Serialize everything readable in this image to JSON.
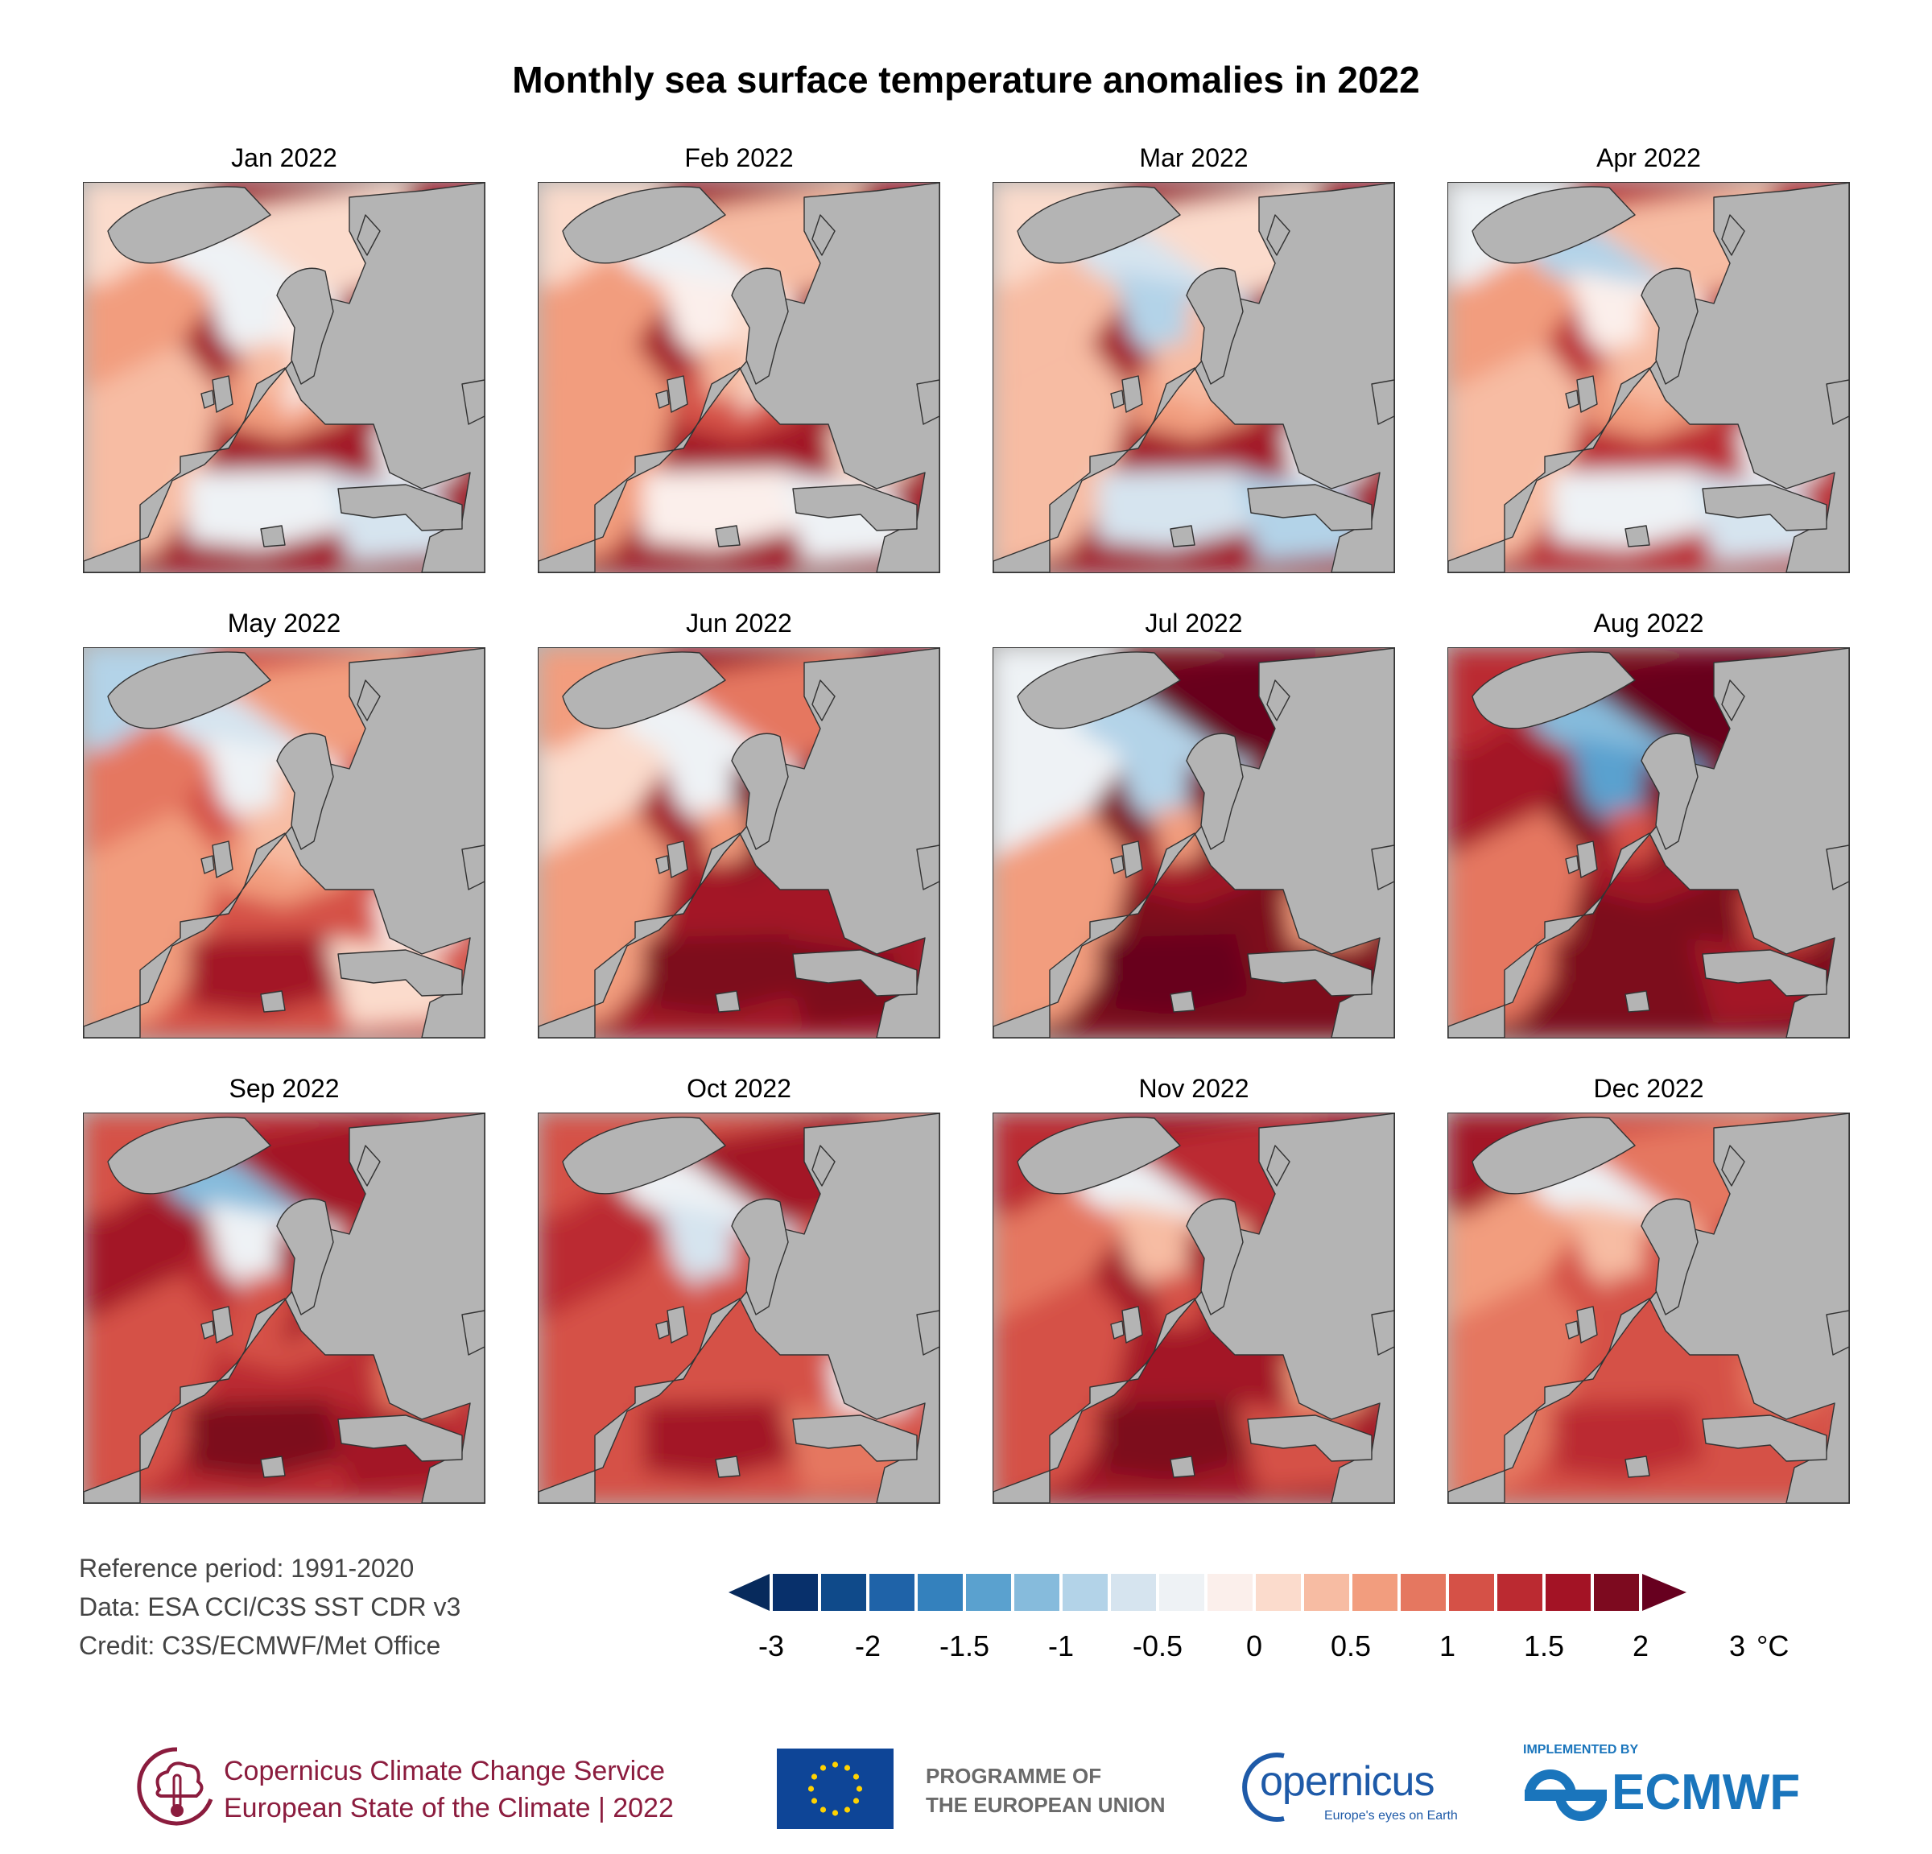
{
  "title": "Monthly sea surface temperature anomalies in 2022",
  "panels": [
    {
      "label": "Jan 2022",
      "scheme": [
        0.5,
        0.4,
        -0.5,
        0.2,
        -0.3,
        0.6,
        -0.2,
        0.3,
        0.0,
        -0.4,
        -0.6,
        -0.3,
        1.6
      ]
    },
    {
      "label": "Feb 2022",
      "scheme": [
        0.6,
        0.5,
        -0.5,
        0.4,
        -0.2,
        1.0,
        0.1,
        0.4,
        0.2,
        -0.2,
        -0.3,
        0.0,
        1.6
      ]
    },
    {
      "label": "Mar 2022",
      "scheme": [
        0.4,
        0.4,
        -0.6,
        0.2,
        -0.8,
        0.6,
        0.3,
        0.4,
        0.1,
        -0.6,
        -0.8,
        -0.5,
        1.6
      ]
    },
    {
      "label": "Apr 2022",
      "scheme": [
        0.5,
        0.4,
        -1.0,
        0.3,
        -0.2,
        0.5,
        0.4,
        0.3,
        -0.3,
        -0.5,
        -0.6,
        -0.4,
        1.4
      ]
    },
    {
      "label": "May 2022",
      "scheme": [
        0.9,
        0.7,
        -0.6,
        0.6,
        -0.3,
        0.5,
        0.3,
        0.4,
        -0.9,
        1.6,
        0.2,
        -0.2,
        1.2
      ]
    },
    {
      "label": "Jun 2022",
      "scheme": [
        0.2,
        0.6,
        -0.5,
        0.8,
        -0.4,
        1.8,
        2.4,
        0.7,
        0.5,
        2.4,
        2.2,
        1.6,
        1.8
      ]
    },
    {
      "label": "Jul 2022",
      "scheme": [
        -0.3,
        0.6,
        -0.8,
        2.6,
        -1.0,
        1.6,
        2.3,
        0.6,
        -0.4,
        2.6,
        2.0,
        0.5,
        2.0
      ]
    },
    {
      "label": "Aug 2022",
      "scheme": [
        1.8,
        0.8,
        -1.2,
        2.8,
        -1.5,
        1.8,
        2.0,
        1.2,
        1.4,
        2.4,
        1.6,
        1.2,
        2.2
      ]
    },
    {
      "label": "Sep 2022",
      "scheme": [
        1.8,
        1.2,
        -1.2,
        1.6,
        -0.5,
        1.0,
        1.5,
        1.2,
        1.0,
        2.4,
        1.5,
        0.9,
        1.4
      ]
    },
    {
      "label": "Oct 2022",
      "scheme": [
        1.4,
        1.0,
        -0.4,
        1.6,
        -0.6,
        1.0,
        1.2,
        1.0,
        1.2,
        1.8,
        0.8,
        -0.3,
        1.2
      ]
    },
    {
      "label": "Nov 2022",
      "scheme": [
        0.9,
        1.0,
        -0.4,
        1.4,
        0.4,
        1.6,
        1.6,
        1.2,
        1.4,
        2.2,
        1.2,
        0.7,
        1.6
      ]
    },
    {
      "label": "Dec 2022",
      "scheme": [
        0.7,
        0.8,
        -0.3,
        0.8,
        0.4,
        1.0,
        1.2,
        1.1,
        1.8,
        1.4,
        1.0,
        0.9,
        1.2
      ]
    }
  ],
  "notes": {
    "reference": "Reference period: 1991-2020",
    "data": "Data: ESA CCI/C3S SST CDR v3",
    "credit": "Credit: C3S/ECMWF/Met Office"
  },
  "colorbar": {
    "colors": [
      "#08306b",
      "#0f4a8a",
      "#1f63a8",
      "#3481bd",
      "#5aa1cf",
      "#86bbdc",
      "#b3d3e8",
      "#d6e4ef",
      "#eef2f5",
      "#fbefeb",
      "#fbdbcc",
      "#f7bca3",
      "#f29d7e",
      "#e57760",
      "#d55147",
      "#bb2a31",
      "#a31325",
      "#7d0a1f"
    ],
    "under_color": "#072a5c",
    "over_color": "#67001f",
    "tick_labels": [
      "-3",
      "-2",
      "-1.5",
      "-1",
      "-0.5",
      "0",
      "0.5",
      "1",
      "1.5",
      "2",
      "3"
    ],
    "unit": "°C"
  },
  "map_colors": {
    "land": "#b4b4b4",
    "coast": "#333333"
  },
  "logos": {
    "c3s_line1": "Copernicus Climate Change Service",
    "c3s_line2": "European State of the Climate | 2022",
    "eu_line1": "PROGRAMME OF",
    "eu_line2": "THE EUROPEAN UNION",
    "copernicus": "opernicus",
    "copernicus_tag": "Europe's eyes on Earth",
    "ecmwf_small": "IMPLEMENTED BY",
    "ecmwf": "ECMWF"
  }
}
